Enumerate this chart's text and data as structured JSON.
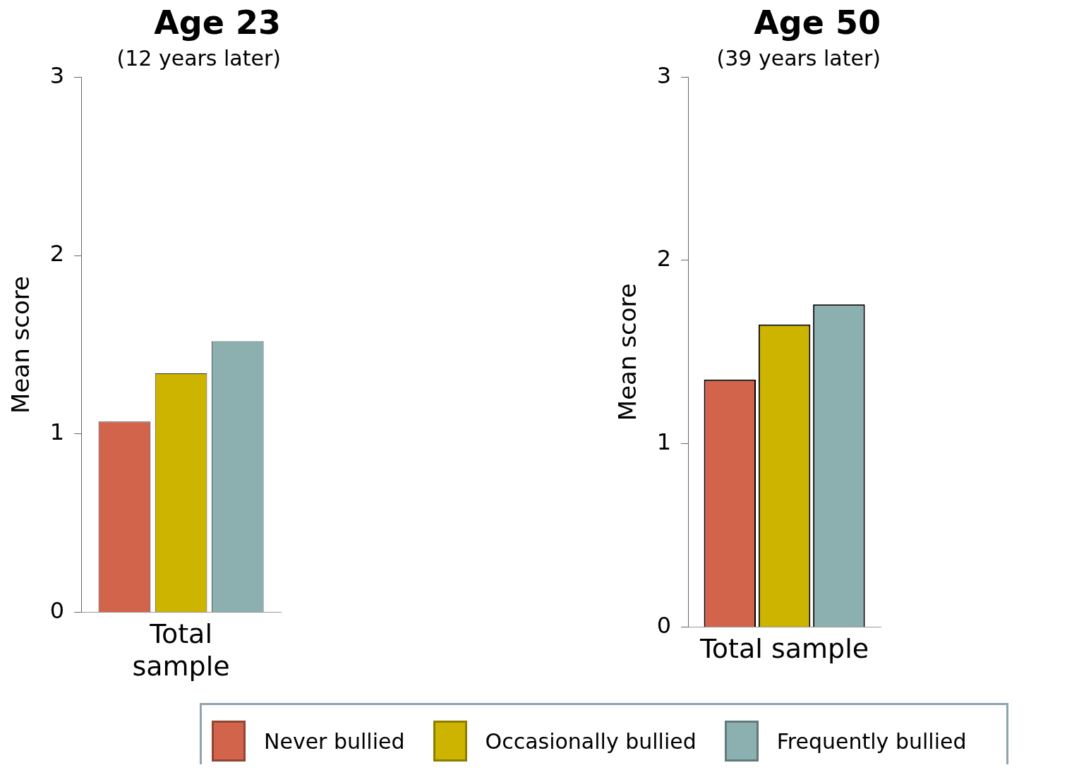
{
  "chart_data": [
    {
      "type": "bar",
      "title": "Age 23",
      "subtitle": "(12 years later)",
      "ylabel": "Mean score",
      "categories": [
        "Total sample"
      ],
      "ylim": [
        0,
        3
      ],
      "yticks": [
        0,
        1,
        2,
        3
      ],
      "grid": false,
      "legend": "bottom",
      "series": [
        {
          "name": "Never bullied",
          "color": "#d2644b",
          "values": [
            1.07
          ]
        },
        {
          "name": "Occasionally bullied",
          "color": "#ccb400",
          "values": [
            1.34
          ]
        },
        {
          "name": "Frequently bullied",
          "color": "#8cb0b0",
          "values": [
            1.52
          ]
        }
      ]
    },
    {
      "type": "bar",
      "title": "Age 50",
      "subtitle": "(39 years later)",
      "ylabel": "Mean score",
      "categories": [
        "Total sample"
      ],
      "ylim": [
        0,
        3
      ],
      "yticks": [
        0,
        1,
        2,
        3
      ],
      "grid": false,
      "series": [
        {
          "color": "#d2644b",
          "values": [
            1.35
          ]
        },
        {
          "color": "#ccb400",
          "values": [
            1.65
          ]
        },
        {
          "color": "#8cb0b0",
          "values": [
            1.76
          ]
        }
      ]
    }
  ]
}
